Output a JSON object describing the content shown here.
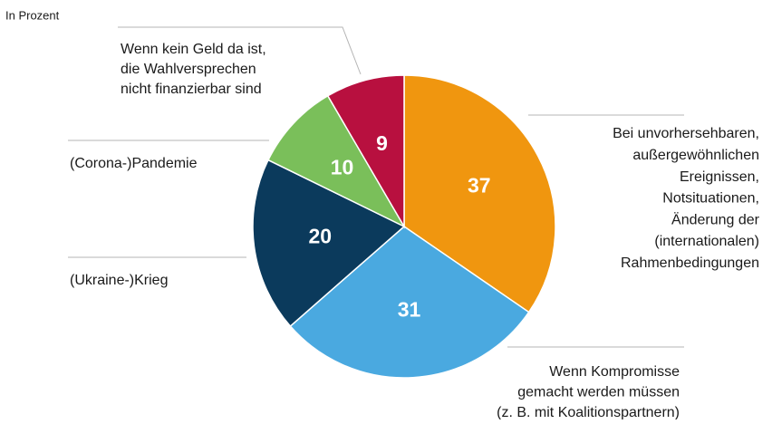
{
  "chart_data": {
    "type": "pie",
    "subtitle": "In Prozent",
    "categories": [
      [
        "Bei unvorhersehbaren,",
        "außergewöhnlichen",
        "Ereignissen,",
        "Notsituationen,",
        "Änderung der",
        "(internationalen)",
        "Rahmenbedingungen"
      ],
      [
        "Wenn Kompromisse",
        "gemacht werden müssen",
        "(z. B. mit Koalitionspartnern)"
      ],
      [
        "(Ukraine-)Krieg"
      ],
      [
        "(Corona-)Pandemie"
      ],
      [
        "Wenn kein Geld da ist,",
        "die Wahlversprechen",
        "nicht finanzierbar sind"
      ]
    ],
    "values": [
      37,
      31,
      20,
      10,
      9
    ],
    "colors": [
      "#f0960f",
      "#4aa9e0",
      "#0b3a5c",
      "#7abf5a",
      "#b8103f"
    ]
  }
}
